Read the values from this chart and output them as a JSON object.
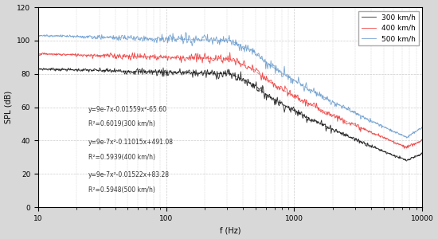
{
  "title": "",
  "xlabel": "f (Hz)",
  "ylabel": "SPL (dB)",
  "legend": [
    "300 km/h",
    "400 km/h",
    "500 km/h"
  ],
  "line_colors": [
    "#111111",
    "#ee3333",
    "#6699cc"
  ],
  "fit_colors": [
    "#444444",
    "#ee8888",
    "#99bbdd"
  ],
  "xlim": [
    10,
    10000
  ],
  "ylim": [
    0,
    120
  ],
  "yticks": [
    0,
    20,
    40,
    60,
    80,
    100,
    120
  ],
  "annotations": [
    "y=9e-7x-0.01559x²-65.60",
    "R²=0.6019(300 km/h)",
    "y=9e-7x²-0.11015x+491.08",
    "R²=0.5939(400 km/h)",
    "y=9e-7x²-0.01522x+83.28",
    "R²=0.5948(500 km/h)"
  ],
  "background": "#ffffff",
  "grid_color": "#cccccc",
  "figsize": [
    5.5,
    3.0
  ],
  "dpi": 100,
  "outer_bg": "#d8d8d8",
  "base_300": 83,
  "base_400": 92,
  "base_500": 103,
  "flat_range_end_log": 2.5,
  "drop_start_log": 2.7,
  "min_val_300": 28,
  "min_val_400": 36,
  "min_val_500": 42,
  "min_freq_log": 3.88,
  "recover_val_300": 32,
  "recover_val_400": 40,
  "recover_val_500": 48
}
